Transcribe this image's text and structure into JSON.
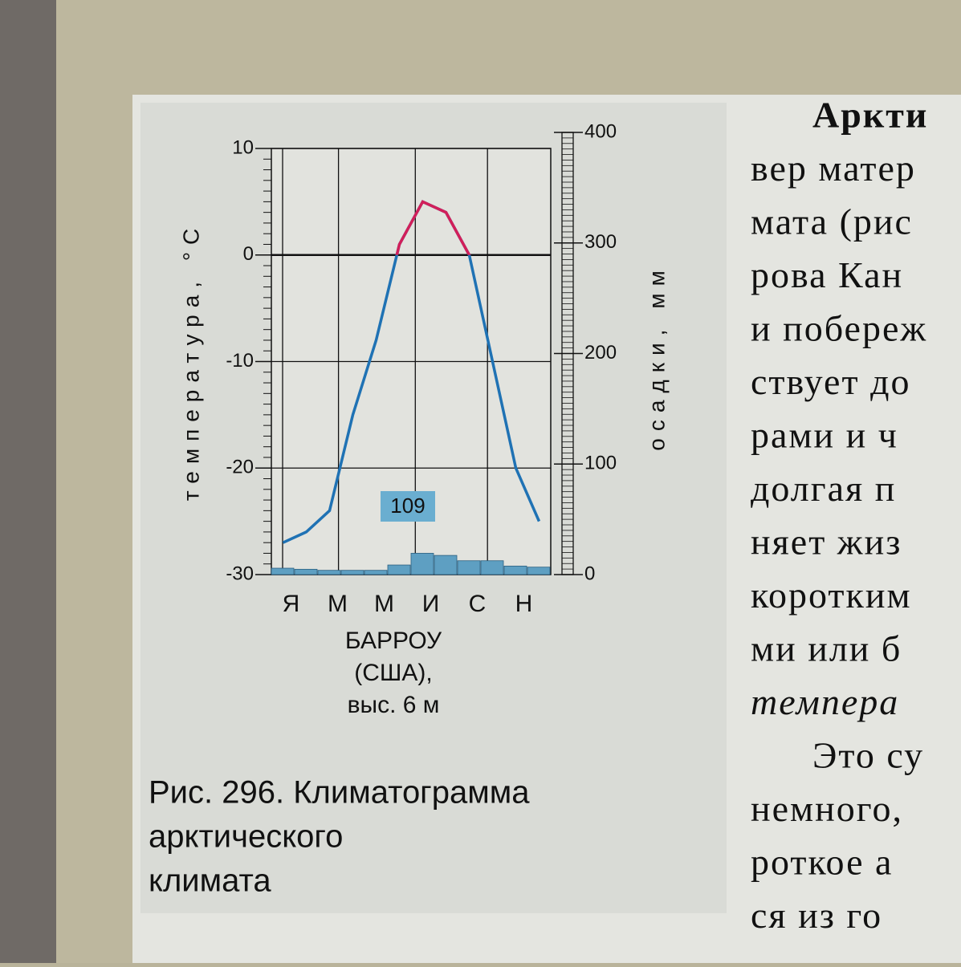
{
  "chart_data": {
    "type": "combo",
    "ylabel": "температура, °С",
    "y2label": "осадки, мм",
    "categories": [
      "Я",
      null,
      "М",
      null,
      "М",
      null,
      "И",
      null,
      "С",
      null,
      "Н",
      null
    ],
    "series": [
      {
        "kind": "line",
        "color": "#1f72b4",
        "positive_color": "#d11f5a",
        "values": [
          -27,
          -26,
          -24,
          -15,
          -8,
          1,
          5,
          4,
          0,
          -10,
          -20,
          -25
        ]
      },
      {
        "kind": "bar",
        "axis": "y2",
        "color": "#5e9fc2",
        "values": [
          6,
          5,
          4,
          4,
          4,
          9,
          20,
          18,
          13,
          13,
          8,
          7
        ]
      }
    ],
    "precipitation_total": 109,
    "ylim": [
      -30,
      10
    ],
    "yticks": [
      -30,
      -20,
      -10,
      0,
      10
    ],
    "y2lim": [
      0,
      400
    ],
    "y2ticks": [
      0,
      100,
      200,
      300,
      400
    ],
    "grid": true,
    "station": [
      "БАРРОУ",
      "(США),",
      "выс. 6 м"
    ],
    "caption": [
      "Рис. 296. Климатограмма",
      "арктического",
      "климата"
    ]
  },
  "page_text": [
    "Аркти",
    "вер матер",
    "мата (рис",
    "рова Кан",
    "и побереж",
    "ствует до",
    "рами и ч",
    "долгая п",
    "няет жиз",
    "коротким",
    "ми или б",
    "темпера",
    "Это су",
    "немного,",
    "роткое а",
    "ся из го"
  ]
}
